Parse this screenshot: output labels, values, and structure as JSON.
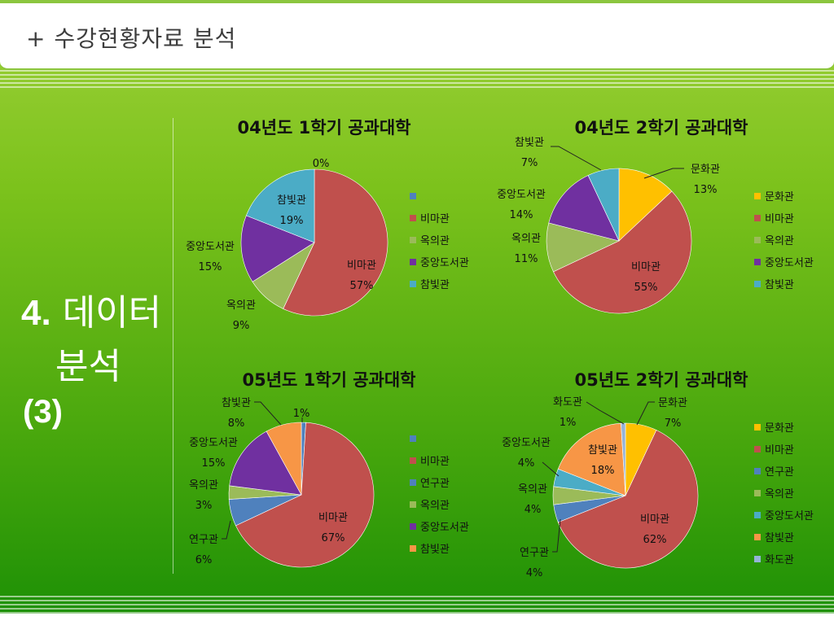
{
  "slide": {
    "title": "+ 수강현황자료 분석",
    "side_num": "4.",
    "side_line1": "데이터",
    "side_line2": "분석",
    "side_line3": "(3)"
  },
  "colors": {
    "문화관": "#ffc000",
    "비마관": "#c0504d",
    "연구관": "#4f81bd",
    "옥의관": "#9bbb59",
    "중앙도서관": "#7030a0",
    "참빛관": "#4bacc6",
    "참빛관05": "#f79646",
    "화도관": "#95b3d7"
  },
  "chart_data": [
    {
      "type": "pie",
      "title": "04년도 1학기 공과대학",
      "legend": [
        "",
        "비마관",
        "옥의관",
        "중앙도서관",
        "참빛관"
      ],
      "legend_colors": [
        "#4f81bd",
        "#c0504d",
        "#9bbb59",
        "#7030a0",
        "#4bacc6"
      ],
      "slices": [
        {
          "label": "",
          "value": 0,
          "display": "0%",
          "color": "#4f81bd"
        },
        {
          "label": "비마관",
          "value": 57,
          "display": "57%",
          "color": "#c0504d"
        },
        {
          "label": "옥의관",
          "value": 9,
          "display": "9%",
          "color": "#9bbb59"
        },
        {
          "label": "중앙도서관",
          "value": 15,
          "display": "15%",
          "color": "#7030a0"
        },
        {
          "label": "참빛관",
          "value": 19,
          "display": "19%",
          "color": "#4bacc6"
        }
      ]
    },
    {
      "type": "pie",
      "title": "04년도 2학기 공과대학",
      "legend": [
        "문화관",
        "비마관",
        "옥의관",
        "중앙도서관",
        "참빛관"
      ],
      "legend_colors": [
        "#ffc000",
        "#c0504d",
        "#9bbb59",
        "#7030a0",
        "#4bacc6"
      ],
      "slices": [
        {
          "label": "문화관",
          "value": 13,
          "display": "13%",
          "color": "#ffc000"
        },
        {
          "label": "비마관",
          "value": 55,
          "display": "55%",
          "color": "#c0504d"
        },
        {
          "label": "옥의관",
          "value": 11,
          "display": "11%",
          "color": "#9bbb59"
        },
        {
          "label": "중앙도서관",
          "value": 14,
          "display": "14%",
          "color": "#7030a0"
        },
        {
          "label": "참빛관",
          "value": 7,
          "display": "7%",
          "color": "#4bacc6"
        }
      ]
    },
    {
      "type": "pie",
      "title": "05년도 1학기 공과대학",
      "legend": [
        "",
        "비마관",
        "연구관",
        "옥의관",
        "중앙도서관",
        "참빛관"
      ],
      "legend_colors": [
        "#4f81bd",
        "#c0504d",
        "#4f81bd",
        "#9bbb59",
        "#7030a0",
        "#f79646"
      ],
      "slices": [
        {
          "label": "",
          "value": 1,
          "display": "1%",
          "color": "#4f81bd"
        },
        {
          "label": "비마관",
          "value": 67,
          "display": "67%",
          "color": "#c0504d"
        },
        {
          "label": "연구관",
          "value": 6,
          "display": "6%",
          "color": "#4f81bd"
        },
        {
          "label": "옥의관",
          "value": 3,
          "display": "3%",
          "color": "#9bbb59"
        },
        {
          "label": "중앙도서관",
          "value": 15,
          "display": "15%",
          "color": "#7030a0"
        },
        {
          "label": "참빛관",
          "value": 8,
          "display": "8%",
          "color": "#f79646"
        }
      ]
    },
    {
      "type": "pie",
      "title": "05년도 2학기 공과대학",
      "legend": [
        "문화관",
        "비마관",
        "연구관",
        "옥의관",
        "중앙도서관",
        "참빛관",
        "화도관"
      ],
      "legend_colors": [
        "#ffc000",
        "#c0504d",
        "#4f81bd",
        "#9bbb59",
        "#4bacc6",
        "#f79646",
        "#95b3d7"
      ],
      "slices": [
        {
          "label": "문화관",
          "value": 7,
          "display": "7%",
          "color": "#ffc000"
        },
        {
          "label": "비마관",
          "value": 62,
          "display": "62%",
          "color": "#c0504d"
        },
        {
          "label": "연구관",
          "value": 4,
          "display": "4%",
          "color": "#4f81bd"
        },
        {
          "label": "옥의관",
          "value": 4,
          "display": "4%",
          "color": "#9bbb59"
        },
        {
          "label": "중앙도서관",
          "value": 4,
          "display": "4%",
          "color": "#4bacc6"
        },
        {
          "label": "참빛관",
          "value": 18,
          "display": "18%",
          "color": "#f79646"
        },
        {
          "label": "화도관",
          "value": 1,
          "display": "1%",
          "color": "#95b3d7"
        }
      ]
    }
  ]
}
